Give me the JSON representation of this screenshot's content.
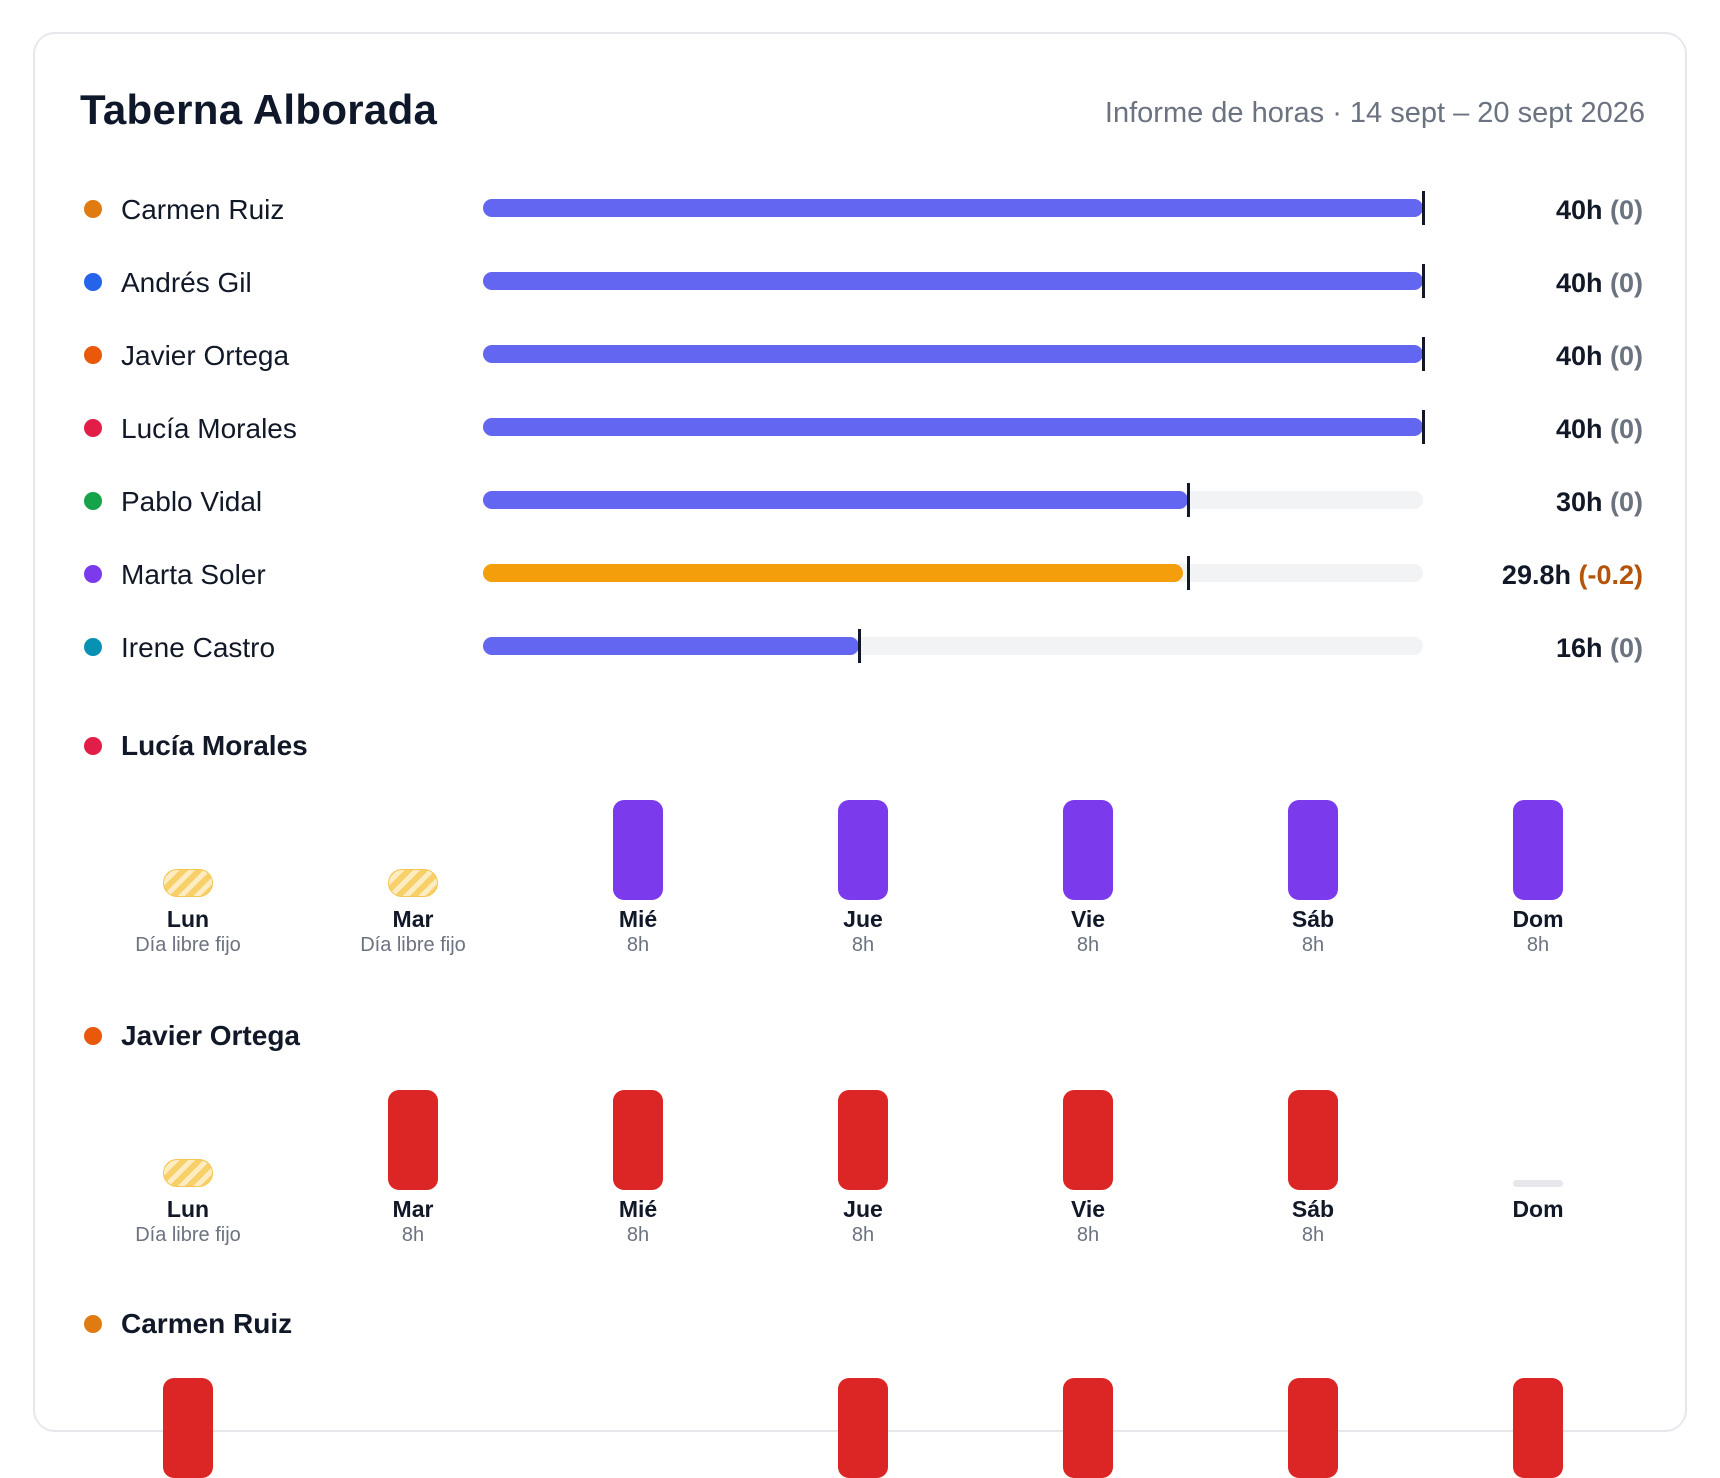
{
  "header": {
    "title": "Taberna Alborada",
    "subtitle": "Informe de horas · 14 sept – 20 sept 2026"
  },
  "summary": [
    {
      "name": "Carmen Ruiz",
      "dot_color": "#e07b12",
      "hours": "40h",
      "delta": "(0)",
      "fill_fraction": 1.0,
      "target_fraction": 1.0,
      "bar_color": "#6366f1"
    },
    {
      "name": "Andrés Gil",
      "dot_color": "#2563eb",
      "hours": "40h",
      "delta": "(0)",
      "fill_fraction": 1.0,
      "target_fraction": 1.0,
      "bar_color": "#6366f1"
    },
    {
      "name": "Javier Ortega",
      "dot_color": "#ea580c",
      "hours": "40h",
      "delta": "(0)",
      "fill_fraction": 1.0,
      "target_fraction": 1.0,
      "bar_color": "#6366f1"
    },
    {
      "name": "Lucía Morales",
      "dot_color": "#e11d48",
      "hours": "40h",
      "delta": "(0)",
      "fill_fraction": 1.0,
      "target_fraction": 1.0,
      "bar_color": "#6366f1"
    },
    {
      "name": "Pablo Vidal",
      "dot_color": "#16a34a",
      "hours": "30h",
      "delta": "(0)",
      "fill_fraction": 0.75,
      "target_fraction": 0.75,
      "bar_color": "#6366f1"
    },
    {
      "name": "Marta Soler",
      "dot_color": "#7c3aed",
      "hours": "29.8h",
      "delta": "(-0.2)",
      "fill_fraction": 0.745,
      "target_fraction": 0.75,
      "bar_color": "#f59e0b",
      "negative": true
    },
    {
      "name": "Irene Castro",
      "dot_color": "#0891b2",
      "hours": "16h",
      "delta": "(0)",
      "fill_fraction": 0.4,
      "target_fraction": 0.4,
      "bar_color": "#6366f1"
    }
  ],
  "schedules": [
    {
      "name": "Lucía Morales",
      "dot_color": "#e11d48",
      "block_color": "#7c3aed",
      "days": [
        {
          "label": "Lun",
          "sub": "Día libre fijo",
          "kind": "off"
        },
        {
          "label": "Mar",
          "sub": "Día libre fijo",
          "kind": "off"
        },
        {
          "label": "Mié",
          "sub": "8h",
          "kind": "work"
        },
        {
          "label": "Jue",
          "sub": "8h",
          "kind": "work"
        },
        {
          "label": "Vie",
          "sub": "8h",
          "kind": "work"
        },
        {
          "label": "Sáb",
          "sub": "8h",
          "kind": "work"
        },
        {
          "label": "Dom",
          "sub": "8h",
          "kind": "work"
        }
      ]
    },
    {
      "name": "Javier Ortega",
      "dot_color": "#ea580c",
      "block_color": "#dc2626",
      "days": [
        {
          "label": "Lun",
          "sub": "Día libre fijo",
          "kind": "off"
        },
        {
          "label": "Mar",
          "sub": "8h",
          "kind": "work"
        },
        {
          "label": "Mié",
          "sub": "8h",
          "kind": "work"
        },
        {
          "label": "Jue",
          "sub": "8h",
          "kind": "work"
        },
        {
          "label": "Vie",
          "sub": "8h",
          "kind": "work"
        },
        {
          "label": "Sáb",
          "sub": "8h",
          "kind": "work"
        },
        {
          "label": "Dom",
          "sub": "",
          "kind": "empty"
        }
      ]
    },
    {
      "name": "Carmen Ruiz",
      "dot_color": "#e07b12",
      "block_color": "#dc2626",
      "days": [
        {
          "label": "",
          "sub": "",
          "kind": "work"
        },
        {
          "label": "",
          "sub": "",
          "kind": "none"
        },
        {
          "label": "",
          "sub": "",
          "kind": "none"
        },
        {
          "label": "",
          "sub": "",
          "kind": "work"
        },
        {
          "label": "",
          "sub": "",
          "kind": "work"
        },
        {
          "label": "",
          "sub": "",
          "kind": "work"
        },
        {
          "label": "",
          "sub": "",
          "kind": "work"
        }
      ]
    }
  ]
}
